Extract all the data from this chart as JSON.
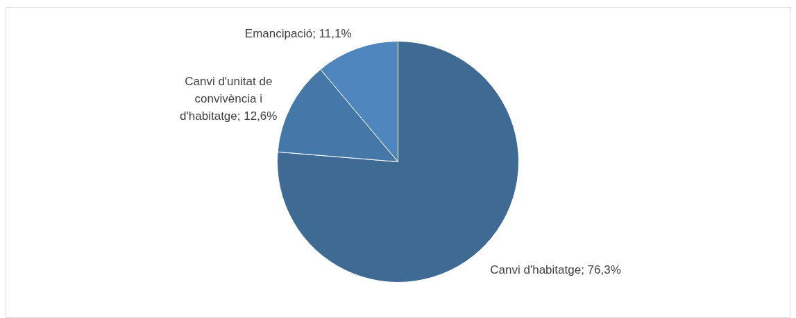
{
  "chart_data": {
    "type": "pie",
    "categories": [
      "Canvi d'habitatge",
      "Canvi d'unitat de convivència i d'habitatge",
      "Emancipació"
    ],
    "values": [
      76.3,
      12.6,
      11.1
    ],
    "colors": [
      "#3e6a94",
      "#4577a8",
      "#4f86bd"
    ],
    "value_labels": [
      "76,3%",
      "12,6%",
      "11,1%"
    ],
    "legend": false
  }
}
